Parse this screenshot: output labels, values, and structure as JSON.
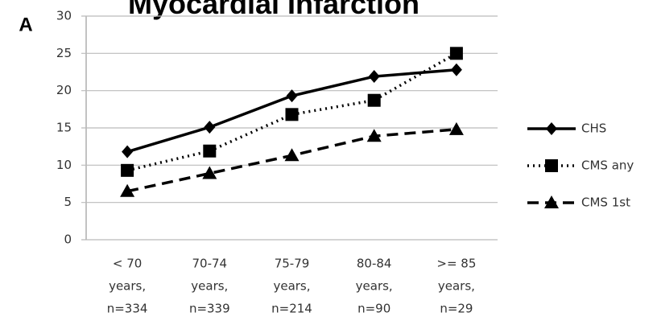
{
  "chart_data": {
    "type": "line",
    "title": "Myocardial Infarction",
    "panel_label": "A",
    "categories": [
      [
        "< 70",
        "years,",
        "n=334"
      ],
      [
        "70-74",
        "years,",
        "n=339"
      ],
      [
        "75-79",
        "years,",
        "n=214"
      ],
      [
        "80-84",
        "years,",
        "n=90"
      ],
      [
        ">= 85",
        "years,",
        "n=29"
      ]
    ],
    "series": [
      {
        "name": "CHS",
        "color": "#000000",
        "line_style": "solid",
        "marker": "diamond",
        "values": [
          11.8,
          15.1,
          19.3,
          21.9,
          22.8
        ]
      },
      {
        "name": "CMS any",
        "color": "#000000",
        "line_style": "dotted",
        "marker": "square",
        "values": [
          9.3,
          11.9,
          16.8,
          18.7,
          25.0
        ]
      },
      {
        "name": "CMS 1st",
        "color": "#000000",
        "line_style": "dashed",
        "marker": "triangle",
        "values": [
          6.5,
          8.9,
          11.3,
          13.9,
          14.8
        ]
      }
    ],
    "ylim": [
      0,
      30
    ],
    "yticks": [
      0,
      5,
      10,
      15,
      20,
      25,
      30
    ],
    "grid": true,
    "legend": "right"
  }
}
